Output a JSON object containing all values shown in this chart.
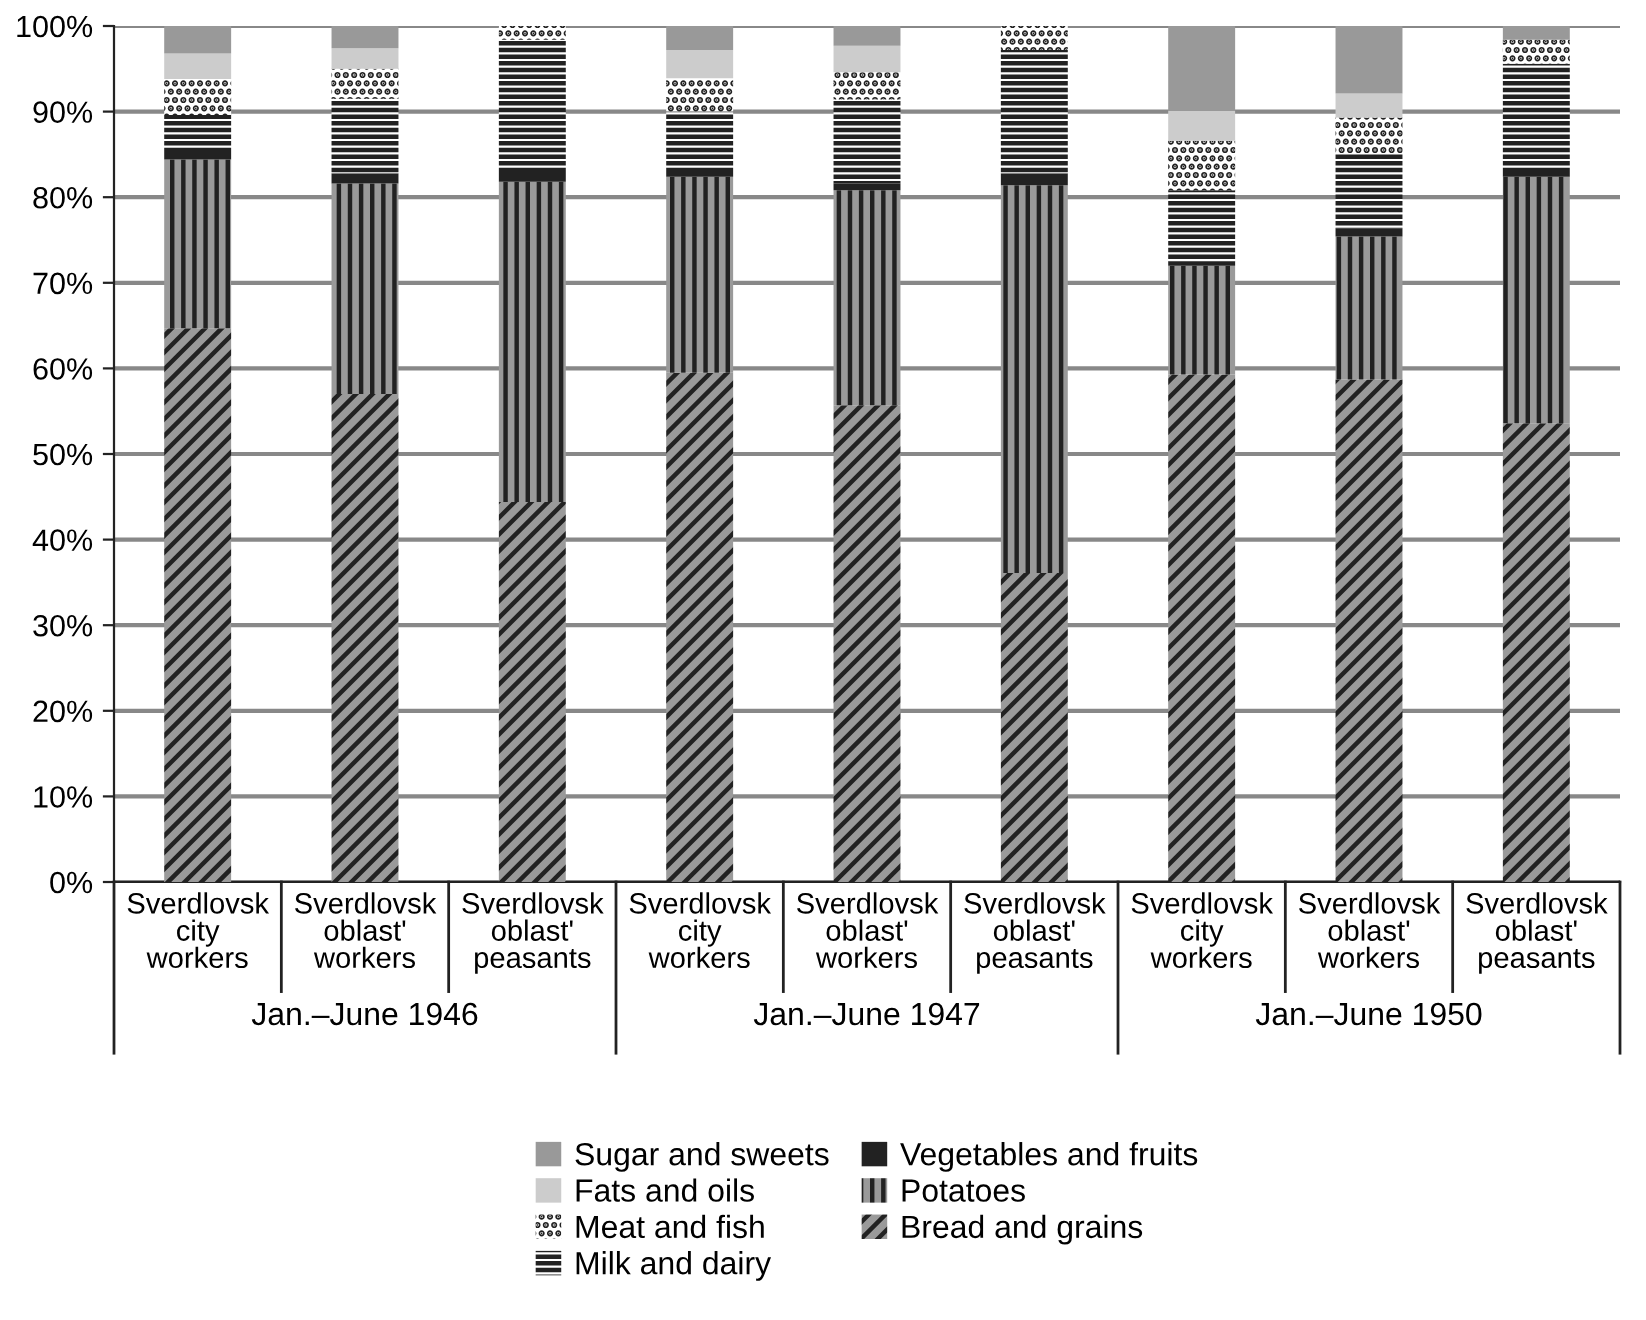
{
  "chart_data": {
    "type": "bar",
    "stacked": true,
    "categories": [
      "Sverdlovsk city workers",
      "Sverdlovsk oblast' workers",
      "Sverdlovsk oblast' peasants",
      "Sverdlovsk city workers",
      "Sverdlovsk oblast' workers",
      "Sverdlovsk oblast' peasants",
      "Sverdlovsk city workers",
      "Sverdlovsk oblast' workers",
      "Sverdlovsk oblast' peasants"
    ],
    "series": [
      {
        "name": "Bread and grains",
        "color": "#9a9a9a",
        "values": [
          64.7,
          57.0,
          44.4,
          59.5,
          55.7,
          36.1,
          59.3,
          58.7,
          53.6
        ]
      },
      {
        "name": "Potatoes",
        "color": "#9a9a9a",
        "values": [
          19.7,
          24.6,
          37.4,
          22.9,
          25.1,
          45.3,
          12.7,
          16.7,
          28.8
        ]
      },
      {
        "name": "Vegetables and fruits",
        "color": "#222222",
        "values": [
          1.0,
          1.2,
          1.5,
          1.0,
          0.8,
          1.4,
          0.5,
          0.9,
          1.0
        ]
      },
      {
        "name": "Milk and dairy",
        "color": "#ffffff",
        "values": [
          4.2,
          8.7,
          15.1,
          6.6,
          9.8,
          14.4,
          8.3,
          8.8,
          12.2
        ]
      },
      {
        "name": "Meat and fish",
        "color": "#ffffff",
        "values": [
          4.2,
          3.5,
          1.6,
          3.9,
          3.2,
          2.8,
          5.8,
          4.2,
          2.8
        ]
      },
      {
        "name": "Fats and oils",
        "color": "#cccccc",
        "values": [
          3.0,
          2.4,
          0,
          3.3,
          3.1,
          0,
          3.5,
          2.8,
          0
        ]
      },
      {
        "name": "Sugar and sweets",
        "color": "#999999",
        "values": [
          3.2,
          2.6,
          0,
          2.8,
          2.3,
          0,
          10.0,
          7.9,
          1.6
        ]
      }
    ],
    "ylim": [
      0,
      100
    ],
    "yticks": [
      {
        "value": 0,
        "label": "0%"
      },
      {
        "value": 10,
        "label": "10%"
      },
      {
        "value": 20,
        "label": "20%"
      },
      {
        "value": 30,
        "label": "30%"
      },
      {
        "value": 40,
        "label": "40%"
      },
      {
        "value": 50,
        "label": "50%"
      },
      {
        "value": 60,
        "label": "60%"
      },
      {
        "value": 70,
        "label": "70%"
      },
      {
        "value": 80,
        "label": "80%"
      },
      {
        "value": 90,
        "label": "90%"
      },
      {
        "value": 100,
        "label": "100%"
      }
    ],
    "grid": "y",
    "legend": "bottom",
    "annotations": [
      "Jan.–June 1946",
      "Jan.–June 1947",
      "Jan.–June 1950"
    ]
  }
}
